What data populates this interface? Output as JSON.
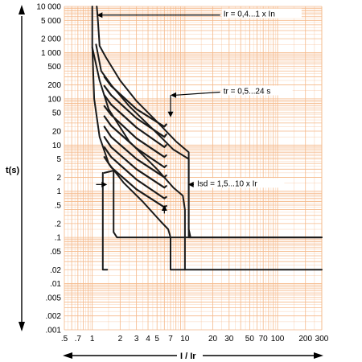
{
  "chart_data": {
    "type": "line",
    "title": "",
    "xlabel": "I / Ir",
    "ylabel": "t(s)",
    "xscale": "log",
    "yscale": "log",
    "xlim": [
      0.5,
      300
    ],
    "ylim": [
      0.001,
      10000
    ],
    "grid": true,
    "grid_color": "#f5b98a",
    "curve_color": "#1a1a1a",
    "x_tick_labels": [
      {
        "v": 0.5,
        "label": ".5"
      },
      {
        "v": 0.7,
        "label": ".7"
      },
      {
        "v": 1,
        "label": "1"
      },
      {
        "v": 2,
        "label": "2"
      },
      {
        "v": 3,
        "label": "3"
      },
      {
        "v": 4,
        "label": "4"
      },
      {
        "v": 5,
        "label": "5"
      },
      {
        "v": 7,
        "label": "7"
      },
      {
        "v": 10,
        "label": "10"
      },
      {
        "v": 20,
        "label": "20"
      },
      {
        "v": 30,
        "label": "30"
      },
      {
        "v": 50,
        "label": "50"
      },
      {
        "v": 70,
        "label": "70"
      },
      {
        "v": 100,
        "label": "100"
      },
      {
        "v": 200,
        "label": "200"
      },
      {
        "v": 300,
        "label": "300"
      }
    ],
    "y_tick_labels": [
      {
        "v": 10000,
        "label": "10 000"
      },
      {
        "v": 5000,
        "label": "5 000"
      },
      {
        "v": 2000,
        "label": "2 000"
      },
      {
        "v": 1000,
        "label": "1 000"
      },
      {
        "v": 500,
        "label": "500"
      },
      {
        "v": 200,
        "label": "200"
      },
      {
        "v": 100,
        "label": "100"
      },
      {
        "v": 50,
        "label": "50"
      },
      {
        "v": 20,
        "label": "20"
      },
      {
        "v": 10,
        "label": "10"
      },
      {
        "v": 5,
        "label": "5"
      },
      {
        "v": 2,
        "label": "2"
      },
      {
        "v": 1,
        "label": "1"
      },
      {
        "v": 0.5,
        "label": ".5"
      },
      {
        "v": 0.2,
        "label": ".2"
      },
      {
        "v": 0.1,
        "label": ".1"
      },
      {
        "v": 0.05,
        "label": ".05"
      },
      {
        "v": 0.02,
        "label": ".02"
      },
      {
        "v": 0.01,
        "label": ".01"
      },
      {
        "v": 0.005,
        "label": ".005"
      },
      {
        "v": 0.002,
        "label": ".002"
      },
      {
        "v": 0.001,
        "label": ".001"
      }
    ],
    "annotations": [
      {
        "text": "Ir = 0,4...1 x In",
        "at": [
          25,
          6500
        ],
        "arrow_to": [
          1.12,
          6500
        ]
      },
      {
        "text": "tr = 0,5...24 s",
        "at": [
          25,
          140
        ],
        "arrow_to": [
          7,
          120
        ],
        "arrow_down_to": [
          7,
          40
        ]
      },
      {
        "text": "Isd = 1,5...10 x Ir",
        "at": [
          13,
          1.4
        ],
        "arrow_to": [
          10.8,
          1.4
        ]
      }
    ],
    "bracket_arrows": [
      {
        "from": [
          1.1,
          1.4
        ],
        "to": [
          1.45,
          1.4
        ]
      },
      {
        "from": [
          6,
          0.33
        ],
        "to": [
          6,
          0.5
        ]
      }
    ],
    "series": [
      {
        "points": [
          [
            1.0,
            10000
          ],
          [
            1.0,
            1400
          ],
          [
            1.05,
            100
          ],
          [
            1.2,
            15
          ],
          [
            1.5,
            4
          ],
          [
            2.2,
            1.5
          ],
          [
            3.5,
            0.6
          ],
          [
            5.5,
            0.22
          ],
          [
            6.6,
            0.15
          ],
          [
            7.0,
            0.1
          ],
          [
            7.0,
            0.02
          ],
          [
            300,
            0.02
          ]
        ]
      },
      {
        "points": [
          [
            1.12,
            10000
          ],
          [
            1.15,
            5000
          ],
          [
            1.2,
            1400
          ],
          [
            1.4,
            800
          ],
          [
            2.0,
            250
          ],
          [
            3.0,
            90
          ],
          [
            5.0,
            32
          ],
          [
            8.0,
            12
          ],
          [
            11.0,
            7
          ],
          [
            11.0,
            0.1
          ],
          [
            300,
            0.1
          ]
        ]
      },
      {
        "points": [
          [
            1.35,
            2.5
          ],
          [
            1.7,
            2.8
          ],
          [
            1.7,
            0.13
          ],
          [
            1.85,
            0.1
          ],
          [
            300,
            0.1
          ]
        ]
      },
      {
        "points": [
          [
            1.3,
            2.5
          ],
          [
            1.3,
            0.02
          ],
          [
            1.45,
            0.02
          ]
        ]
      },
      {
        "points": [
          [
            1.1,
            1500
          ],
          [
            1.25,
            400
          ],
          [
            1.6,
            200
          ],
          [
            2.5,
            70
          ],
          [
            5.0,
            18
          ],
          [
            7.5,
            8
          ],
          [
            11.0,
            5
          ],
          [
            11.0,
            0.15
          ],
          [
            11.5,
            0.1
          ]
        ]
      },
      {
        "points": [
          [
            1.0,
            1300
          ],
          [
            1.2,
            250
          ],
          [
            1.5,
            60
          ],
          [
            2.5,
            12
          ],
          [
            5.0,
            3
          ],
          [
            7.5,
            1.2
          ],
          [
            9.5,
            0.8
          ],
          [
            10.0,
            0.4
          ],
          [
            10.0,
            0.02
          ]
        ]
      },
      {
        "points": [
          [
            1.35,
            300
          ],
          [
            1.6,
            190
          ],
          [
            3.0,
            60
          ],
          [
            6.0,
            25
          ],
          [
            6.3,
            28
          ]
        ]
      },
      {
        "points": [
          [
            1.35,
            190
          ],
          [
            1.6,
            120
          ],
          [
            3.0,
            38
          ],
          [
            6.0,
            15
          ],
          [
            6.3,
            17
          ]
        ]
      },
      {
        "points": [
          [
            1.35,
            120
          ],
          [
            1.6,
            75
          ],
          [
            3.0,
            24
          ],
          [
            6.0,
            9
          ],
          [
            6.3,
            10
          ]
        ]
      },
      {
        "points": [
          [
            1.35,
            70
          ],
          [
            1.6,
            45
          ],
          [
            3.0,
            14
          ],
          [
            6.0,
            5.5
          ],
          [
            6.3,
            6
          ]
        ]
      },
      {
        "points": [
          [
            1.35,
            42
          ],
          [
            1.6,
            26
          ],
          [
            3.0,
            8.5
          ],
          [
            6.0,
            3.3
          ],
          [
            6.3,
            3.6
          ]
        ]
      },
      {
        "points": [
          [
            1.35,
            25
          ],
          [
            1.6,
            15
          ],
          [
            3.0,
            5
          ],
          [
            6.0,
            2
          ],
          [
            6.3,
            2.2
          ]
        ]
      },
      {
        "points": [
          [
            1.35,
            15
          ],
          [
            1.6,
            9
          ],
          [
            3.0,
            3
          ],
          [
            6.0,
            1.2
          ],
          [
            6.3,
            1.3
          ]
        ]
      },
      {
        "points": [
          [
            1.35,
            9
          ],
          [
            1.6,
            5.5
          ],
          [
            3.0,
            1.8
          ],
          [
            6.0,
            0.7
          ],
          [
            6.3,
            0.75
          ]
        ]
      },
      {
        "points": [
          [
            1.35,
            5.5
          ],
          [
            1.6,
            3.3
          ],
          [
            3.0,
            1.1
          ],
          [
            6.0,
            0.45
          ],
          [
            6.3,
            0.48
          ]
        ]
      }
    ]
  }
}
